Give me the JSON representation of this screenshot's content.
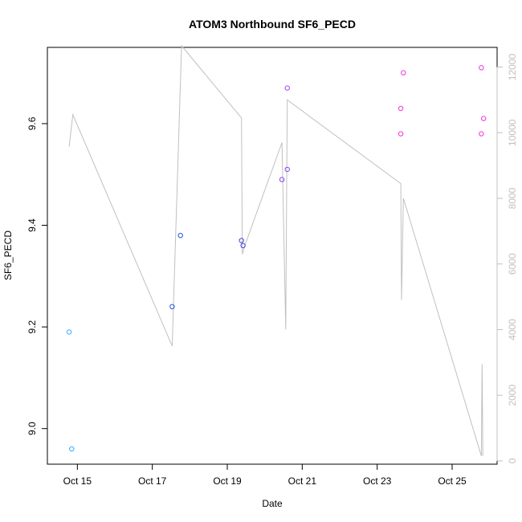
{
  "chart_data": {
    "type": "scatter",
    "title": "ATOM3 Northbound SF6_PECD",
    "xlabel": "Date",
    "ylabel": "SF6_PECD",
    "x_ticks": [
      "Oct 15",
      "Oct 17",
      "Oct 19",
      "Oct 21",
      "Oct 23",
      "Oct 25"
    ],
    "x_tick_days": [
      15,
      17,
      19,
      21,
      23,
      25
    ],
    "xlim_days": [
      14.2,
      26.2
    ],
    "ylim": [
      8.93,
      9.75
    ],
    "y_ticks": [
      9.0,
      9.2,
      9.4,
      9.6
    ],
    "y2lim": [
      -100,
      12600
    ],
    "y2_ticks": [
      0,
      2000,
      4000,
      6000,
      8000,
      10000,
      12000
    ],
    "grid": false,
    "points": [
      {
        "day": 14.78,
        "y": 9.19,
        "color": "#33aaff"
      },
      {
        "day": 14.85,
        "y": 8.96,
        "color": "#33aaff"
      },
      {
        "day": 17.53,
        "y": 9.24,
        "color": "#2255dd"
      },
      {
        "day": 17.75,
        "y": 9.38,
        "color": "#2255dd"
      },
      {
        "day": 19.38,
        "y": 9.37,
        "color": "#4444dd"
      },
      {
        "day": 19.42,
        "y": 9.36,
        "color": "#4444dd"
      },
      {
        "day": 20.46,
        "y": 9.49,
        "color": "#8844ee"
      },
      {
        "day": 20.6,
        "y": 9.51,
        "color": "#8844ee"
      },
      {
        "day": 20.6,
        "y": 9.67,
        "color": "#aa44ee"
      },
      {
        "day": 23.63,
        "y": 9.58,
        "color": "#ee33dd"
      },
      {
        "day": 23.63,
        "y": 9.63,
        "color": "#ee33dd"
      },
      {
        "day": 23.7,
        "y": 9.7,
        "color": "#ee33dd"
      },
      {
        "day": 25.78,
        "y": 9.58,
        "color": "#ee33dd"
      },
      {
        "day": 25.78,
        "y": 9.71,
        "color": "#ee33dd"
      },
      {
        "day": 25.84,
        "y": 9.61,
        "color": "#ee33dd"
      }
    ],
    "line_series": {
      "color": "#c0c0c0",
      "points": [
        {
          "day": 14.78,
          "y2": 9580
        },
        {
          "day": 14.88,
          "y2": 10550
        },
        {
          "day": 17.53,
          "y2": 3500
        },
        {
          "day": 17.78,
          "y2": 12650
        },
        {
          "day": 19.38,
          "y2": 10450
        },
        {
          "day": 19.4,
          "y2": 6300
        },
        {
          "day": 19.48,
          "y2": 6600
        },
        {
          "day": 20.46,
          "y2": 9700
        },
        {
          "day": 20.56,
          "y2": 4000
        },
        {
          "day": 20.6,
          "y2": 11000
        },
        {
          "day": 23.63,
          "y2": 8450
        },
        {
          "day": 23.65,
          "y2": 4900
        },
        {
          "day": 23.7,
          "y2": 8000
        },
        {
          "day": 25.78,
          "y2": 150
        },
        {
          "day": 25.8,
          "y2": 2950
        },
        {
          "day": 25.82,
          "y2": 150
        }
      ]
    }
  }
}
